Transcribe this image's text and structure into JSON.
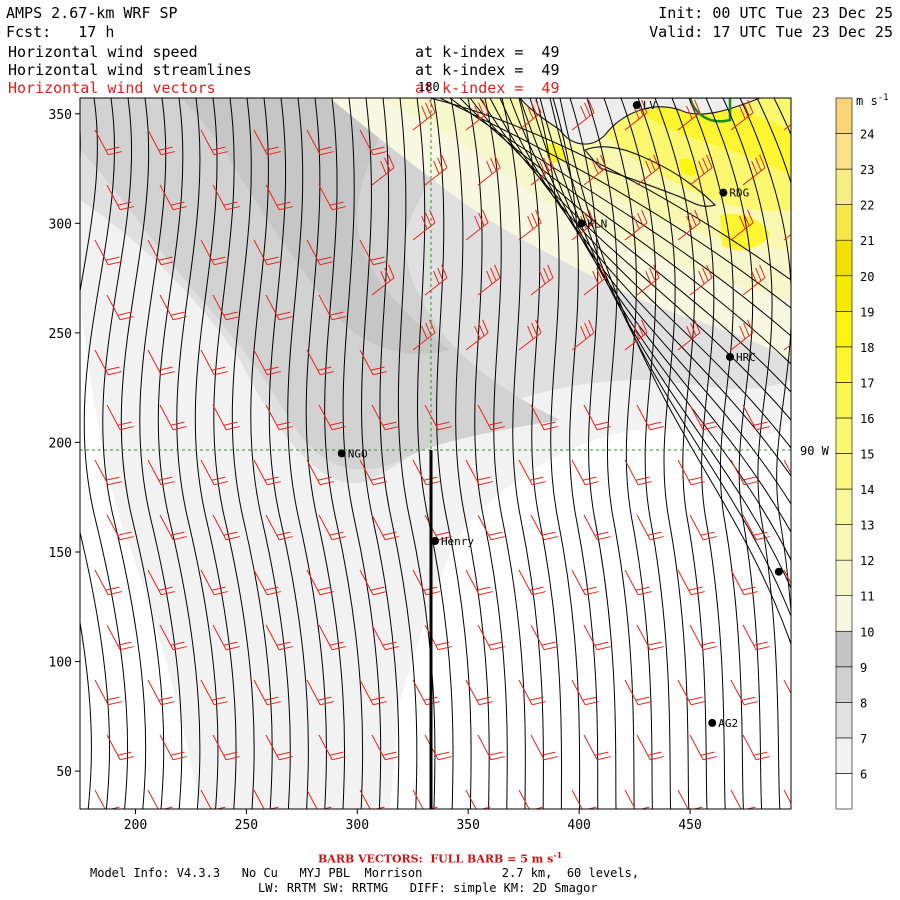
{
  "header": {
    "title": "AMPS 2.67-km WRF SP",
    "forecast": "Fcst:   17 h",
    "init": "Init: 00 UTC Tue 23 Dec 25",
    "valid": "Valid: 17 UTC Tue 23 Dec 25",
    "fields": [
      {
        "name": "Horizontal wind speed",
        "level": "at k-index =  49",
        "color": "#000000"
      },
      {
        "name": "Horizontal wind streamlines",
        "level": "at k-index =  49",
        "color": "#000000"
      },
      {
        "name": "Horizontal wind vectors",
        "level": "at k-index =  49",
        "color": "#e0201a"
      }
    ]
  },
  "map": {
    "x_ticks": [
      "200",
      "250",
      "300",
      "350",
      "400",
      "450"
    ],
    "y_ticks": [
      "50",
      "100",
      "150",
      "200",
      "250",
      "300",
      "350"
    ],
    "grid_labels": {
      "top": "180",
      "right": "90 W"
    },
    "stations": [
      {
        "label": "LV",
        "x": 426,
        "y": 354
      },
      {
        "label": "RDG",
        "x": 465,
        "y": 314
      },
      {
        "label": "KLN",
        "x": 401,
        "y": 300
      },
      {
        "label": "HRC",
        "x": 468,
        "y": 239
      },
      {
        "label": "NGO",
        "x": 293,
        "y": 195
      },
      {
        "label": "Henry",
        "x": 335,
        "y": 155
      },
      {
        "label": "AG2",
        "x": 460,
        "y": 72
      },
      {
        "label": "",
        "x": 490,
        "y": 141
      }
    ],
    "colors": {
      "streamline": "#000000",
      "barb": "#e8231b",
      "gridline": "#2e8b2e",
      "coast": "#1a8c1a"
    }
  },
  "colorbar": {
    "unit": "m s",
    "unit_exp": "-1",
    "ticks": [
      "6",
      "7",
      "8",
      "9",
      "10",
      "11",
      "12",
      "13",
      "14",
      "15",
      "16",
      "17",
      "18",
      "19",
      "20",
      "21",
      "22",
      "23",
      "24"
    ],
    "colors": [
      "#ffffff",
      "#f2f2f2",
      "#e2e2e2",
      "#d0d0d0",
      "#c4c4c4",
      "#f7f7e2",
      "#f7f7cc",
      "#f7f7b6",
      "#f8f89c",
      "#faf880",
      "#fbf870",
      "#fcf44f",
      "#fcf52f",
      "#fdf411",
      "#f6ea00",
      "#f4e000",
      "#f6e84a",
      "#f8ee88",
      "#fbe08a",
      "#f9d478"
    ]
  },
  "footer": {
    "barb_note": "BARB VECTORS:  FULL BARB = 5 m s",
    "barb_exp": "-1",
    "model_line1": "Model Info: V4.3.3   No Cu   MYJ PBL  Morrison           2.7 km,  60 levels,",
    "model_line2": "LW: RRTM SW: RRTMG   DIFF: simple KM: 2D Smagor"
  }
}
